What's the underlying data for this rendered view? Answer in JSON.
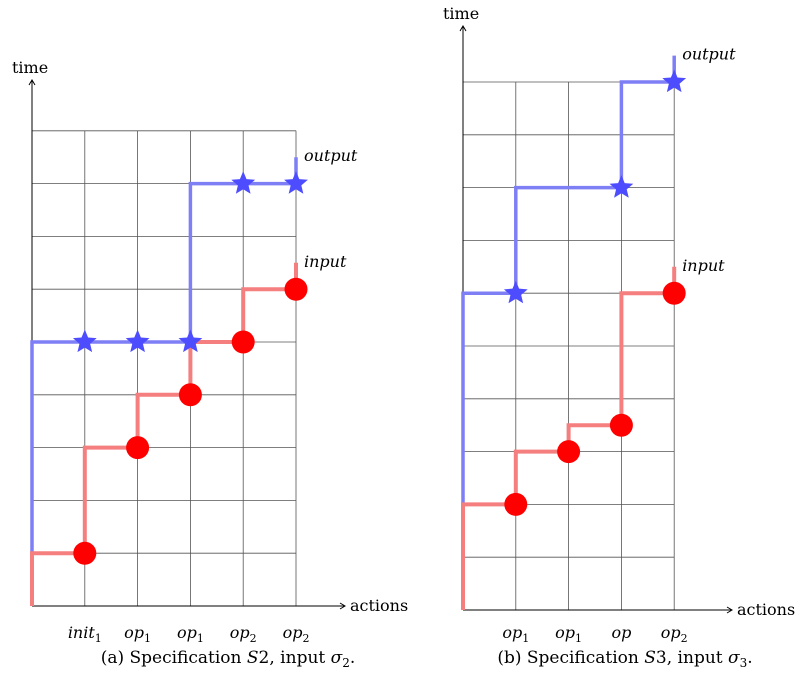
{
  "panels": [
    {
      "id": "a",
      "y_axis_label": "time",
      "x_axis_label": "actions",
      "x_tick_labels": [
        {
          "base": "init",
          "sub": "1"
        },
        {
          "base": "op",
          "sub": "1"
        },
        {
          "base": "op",
          "sub": "1"
        },
        {
          "base": "op",
          "sub": "2"
        },
        {
          "base": "op",
          "sub": "2"
        }
      ],
      "grid": {
        "cols": 5,
        "rows": 9
      },
      "input_label": "input",
      "output_label": "output",
      "input_path": [
        [
          0,
          0
        ],
        [
          0,
          1
        ],
        [
          1,
          1
        ],
        [
          1,
          3
        ],
        [
          2,
          3
        ],
        [
          2,
          4
        ],
        [
          3,
          4
        ],
        [
          3,
          5
        ],
        [
          4,
          5
        ],
        [
          4,
          6
        ],
        [
          5,
          6
        ],
        [
          5,
          6.5
        ]
      ],
      "output_path": [
        [
          0,
          0
        ],
        [
          0,
          5
        ],
        [
          3,
          5
        ],
        [
          3,
          8
        ],
        [
          5,
          8
        ],
        [
          5,
          8.5
        ]
      ],
      "input_points": [
        [
          1,
          1
        ],
        [
          2,
          3
        ],
        [
          3,
          4
        ],
        [
          4,
          5
        ],
        [
          5,
          6
        ]
      ],
      "output_points": [
        [
          1,
          5
        ],
        [
          2,
          5
        ],
        [
          3,
          5
        ],
        [
          4,
          8
        ],
        [
          5,
          8
        ]
      ],
      "caption": {
        "prefix": "(a) Specification ",
        "spec": "S",
        "spec_num": "2",
        "mid": ", input ",
        "sigma": "σ",
        "sigma_sub": "2",
        "suffix": "."
      }
    },
    {
      "id": "b",
      "y_axis_label": "time",
      "x_axis_label": "actions",
      "x_tick_labels": [
        {
          "base": "op",
          "sub": "1"
        },
        {
          "base": "op",
          "sub": "1"
        },
        {
          "base": "op",
          "sub": ""
        },
        {
          "base": "op",
          "sub": "2"
        }
      ],
      "grid": {
        "cols": 4,
        "rows": 10
      },
      "input_label": "input",
      "output_label": "output",
      "input_path": [
        [
          0,
          0
        ],
        [
          0,
          2
        ],
        [
          1,
          2
        ],
        [
          1,
          3
        ],
        [
          2,
          3
        ],
        [
          2,
          3.5
        ],
        [
          3,
          3.5
        ],
        [
          3,
          6
        ],
        [
          4,
          6
        ],
        [
          4,
          6.5
        ]
      ],
      "output_path": [
        [
          0,
          0
        ],
        [
          0,
          6
        ],
        [
          1,
          6
        ],
        [
          1,
          8
        ],
        [
          3,
          8
        ],
        [
          3,
          10
        ],
        [
          4,
          10
        ],
        [
          4,
          10.5
        ]
      ],
      "input_points": [
        [
          1,
          2
        ],
        [
          2,
          3
        ],
        [
          3,
          3.5
        ],
        [
          4,
          6
        ]
      ],
      "output_points": [
        [
          1,
          6
        ],
        [
          3,
          8
        ],
        [
          4,
          10
        ]
      ],
      "caption": {
        "prefix": "(b) Specification ",
        "spec": "S",
        "spec_num": "3",
        "mid": ", input ",
        "sigma": "σ",
        "sigma_sub": "3",
        "suffix": "."
      }
    }
  ],
  "colors": {
    "input": "#f57f7f",
    "input_marker": "#ff0000",
    "output": "#7f7ff5",
    "output_marker": "#4d4dff",
    "grid": "#555555"
  }
}
